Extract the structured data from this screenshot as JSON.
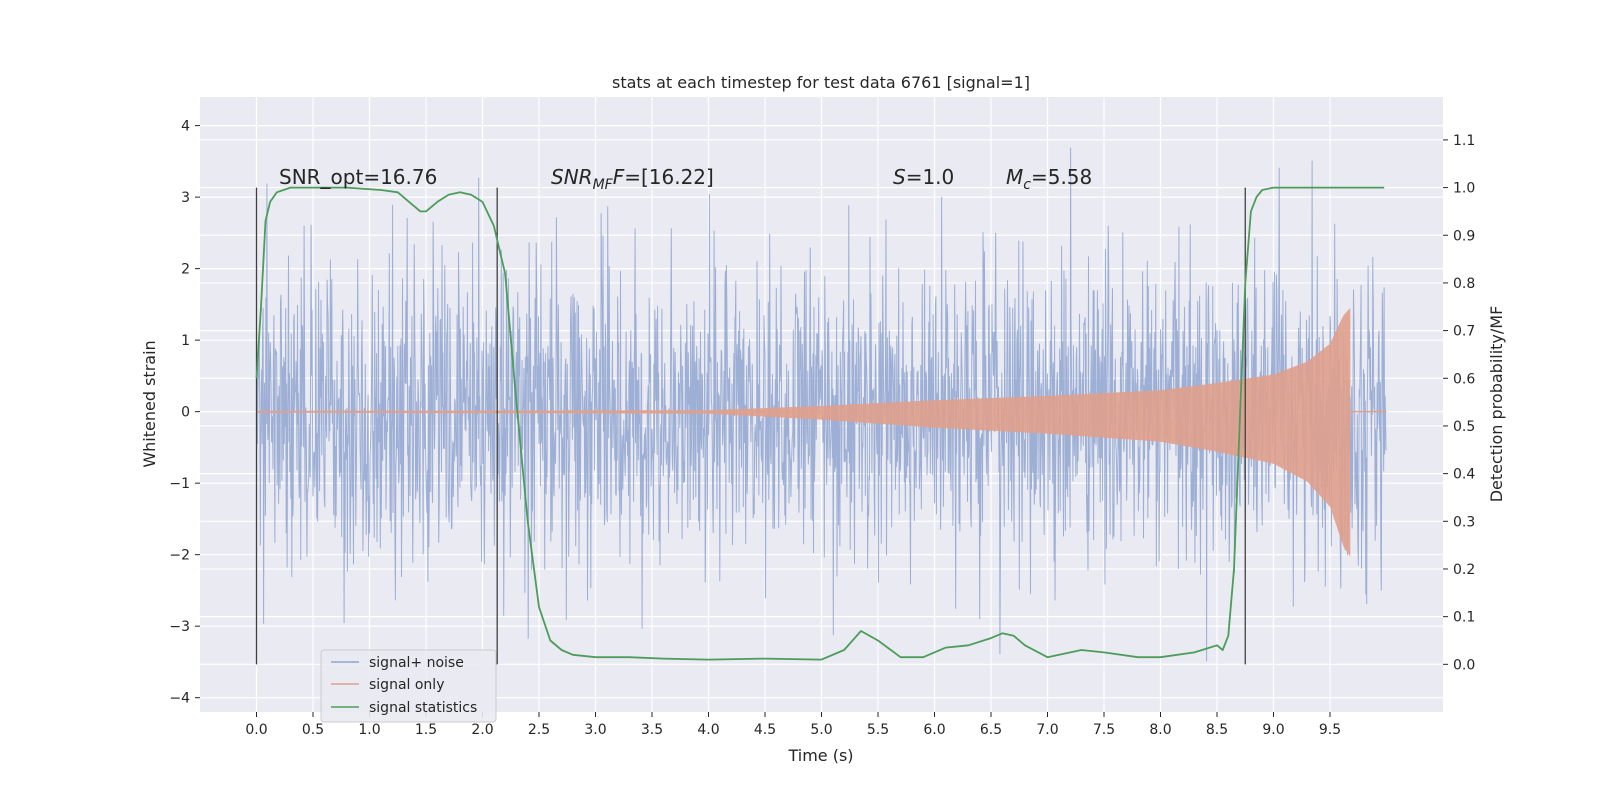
{
  "chart_data": {
    "type": "line",
    "title": "stats at each timestep for test data 6761 [signal=1]",
    "xlabel": "Time (s)",
    "ylabel": "Whitened strain",
    "y2label": "Detection probability/MF",
    "xlim": [
      -0.5,
      10.5
    ],
    "ylim": [
      -4.2,
      4.4
    ],
    "y2lim": [
      -0.1,
      1.19
    ],
    "x_ticks": [
      "0.0",
      "0.5",
      "1.0",
      "1.5",
      "2.0",
      "2.5",
      "3.0",
      "3.5",
      "4.0",
      "4.5",
      "5.0",
      "5.5",
      "6.0",
      "6.5",
      "7.0",
      "7.5",
      "8.0",
      "8.5",
      "9.0",
      "9.5"
    ],
    "y_ticks": [
      "4",
      "3",
      "2",
      "1",
      "0",
      "−1",
      "−2",
      "−3",
      "−4"
    ],
    "y2_ticks": [
      "1.1",
      "1.0",
      "0.9",
      "0.8",
      "0.7",
      "0.6",
      "0.5",
      "0.4",
      "0.3",
      "0.2",
      "0.1",
      "0.0"
    ],
    "grid": true,
    "legend_position": "lower-left",
    "series": [
      {
        "name": "signal+ noise",
        "color": "#8fa5d0",
        "axis": "left",
        "description_values": {
          "x_range": [
            0.0,
            10.0
          ],
          "typical_envelope": [
            -1.5,
            1.5
          ],
          "peak_max": 4.05,
          "peak_min": -3.6
        }
      },
      {
        "name": "signal only",
        "color": "#e0a08c",
        "axis": "left",
        "chirp_amplitude_points": [
          {
            "x": 0.0,
            "y": 0.01
          },
          {
            "x": 4.0,
            "y": 0.02
          },
          {
            "x": 5.0,
            "y": 0.08
          },
          {
            "x": 6.0,
            "y": 0.16
          },
          {
            "x": 7.0,
            "y": 0.22
          },
          {
            "x": 8.0,
            "y": 0.3
          },
          {
            "x": 8.5,
            "y": 0.4
          },
          {
            "x": 9.0,
            "y": 0.52
          },
          {
            "x": 9.3,
            "y": 0.7
          },
          {
            "x": 9.5,
            "y": 0.95
          },
          {
            "x": 9.62,
            "y": 1.35
          },
          {
            "x": 9.68,
            "y": 1.45
          }
        ],
        "merger_time": 9.68
      },
      {
        "name": "signal statistics",
        "color": "#4c9c5a",
        "axis": "right",
        "x": [
          0.0,
          0.04,
          0.08,
          0.12,
          0.18,
          0.3,
          0.5,
          0.8,
          1.1,
          1.25,
          1.35,
          1.45,
          1.5,
          1.6,
          1.7,
          1.8,
          1.9,
          2.0,
          2.1,
          2.2,
          2.3,
          2.4,
          2.5,
          2.6,
          2.7,
          2.8,
          3.0,
          3.3,
          3.6,
          4.0,
          4.5,
          5.0,
          5.2,
          5.35,
          5.5,
          5.7,
          5.9,
          6.1,
          6.3,
          6.5,
          6.6,
          6.7,
          6.8,
          7.0,
          7.3,
          7.5,
          7.8,
          8.0,
          8.3,
          8.5,
          8.55,
          8.6,
          8.65,
          8.7,
          8.75,
          8.8,
          8.85,
          8.9,
          9.0,
          9.3,
          9.6,
          9.98
        ],
        "y": [
          0.6,
          0.75,
          0.93,
          0.97,
          0.99,
          1.0,
          1.0,
          1.0,
          0.995,
          0.99,
          0.97,
          0.95,
          0.95,
          0.97,
          0.985,
          0.99,
          0.985,
          0.97,
          0.92,
          0.82,
          0.55,
          0.3,
          0.12,
          0.05,
          0.03,
          0.02,
          0.015,
          0.015,
          0.012,
          0.01,
          0.012,
          0.01,
          0.03,
          0.07,
          0.05,
          0.015,
          0.015,
          0.035,
          0.04,
          0.055,
          0.065,
          0.06,
          0.04,
          0.015,
          0.03,
          0.025,
          0.015,
          0.015,
          0.025,
          0.04,
          0.03,
          0.06,
          0.2,
          0.5,
          0.8,
          0.95,
          0.98,
          0.995,
          1.0,
          1.0,
          1.0,
          1.0
        ]
      }
    ],
    "markers_x": [
      0.0,
      2.13,
      8.75
    ],
    "annotations": {
      "snr_opt": "SNR_opt=16.76",
      "snr_mf_main": "SNR",
      "snr_mf_sub": "MF",
      "snr_mf_rest": "=[16.22]",
      "s_main": "S",
      "s_rest": "=1.0",
      "mc_main": "M",
      "mc_sub": "c",
      "mc_rest": "=5.58"
    },
    "legend_entries": [
      "signal+ noise",
      "signal only",
      "signal statistics"
    ]
  }
}
